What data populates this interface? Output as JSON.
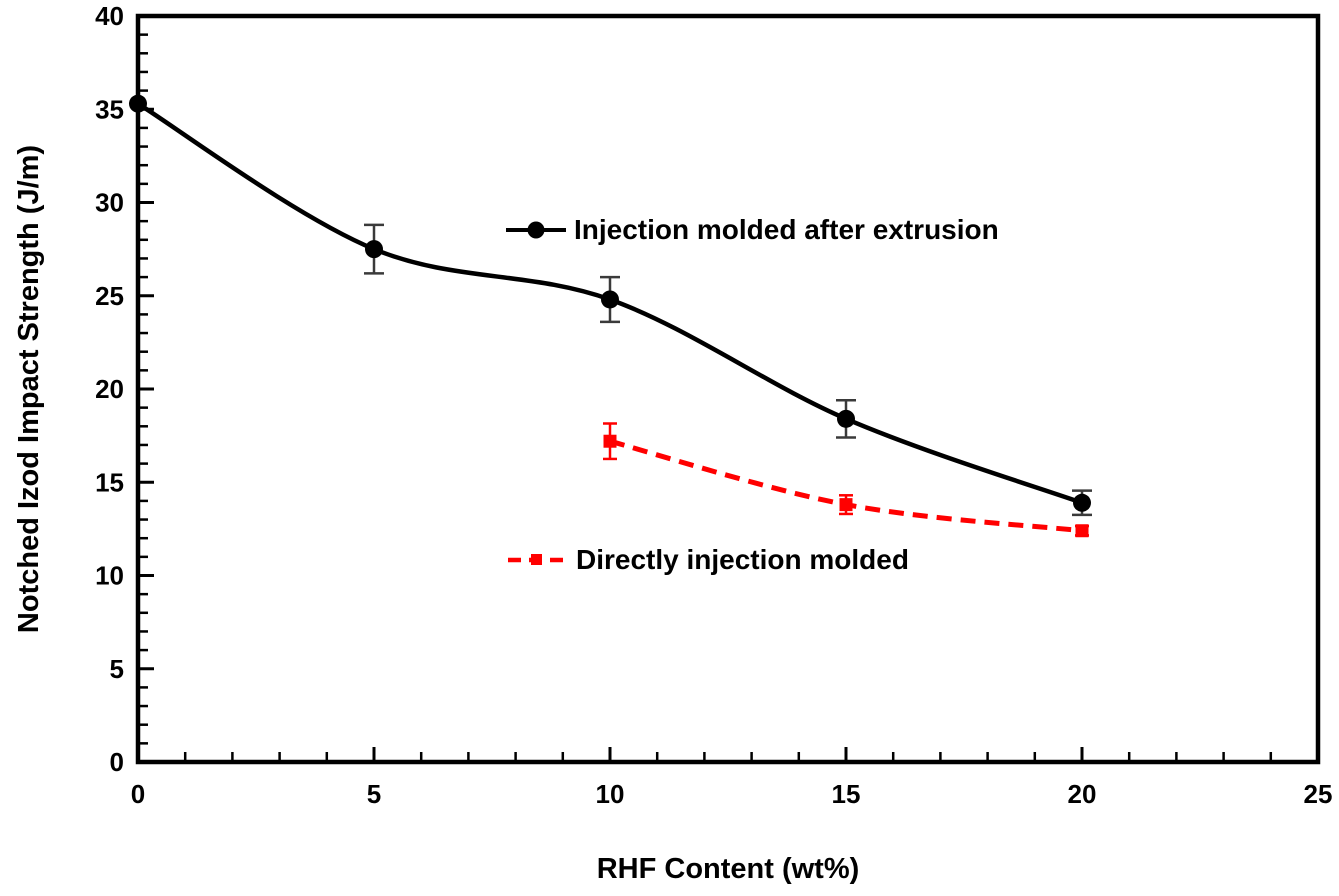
{
  "chart_data": {
    "type": "line",
    "title": "",
    "xlabel": "RHF Content (wt%)",
    "ylabel": "Notched Izod Impact Strength (J/m)",
    "xlim": [
      0,
      25
    ],
    "ylim": [
      0,
      40
    ],
    "x_major_ticks": [
      0,
      5,
      10,
      15,
      20,
      25
    ],
    "y_major_ticks": [
      0,
      5,
      10,
      15,
      20,
      25,
      30,
      35,
      40
    ],
    "minor_tick_step_x": 1,
    "minor_tick_step_y": 1,
    "grid": false,
    "frame": true,
    "legend_position": "inside-plot",
    "colors": {
      "series1": "#000000",
      "series2": "#ff0000",
      "error_bar_dark": "#3a3a3a"
    },
    "series": [
      {
        "name": "Injection molded after extrusion",
        "color": "#000000",
        "line_style": "solid",
        "marker": "circle",
        "x": [
          0,
          5,
          10,
          15,
          20
        ],
        "y": [
          35.3,
          27.5,
          24.8,
          18.4,
          13.9
        ],
        "y_err": [
          0,
          1.3,
          1.2,
          1.0,
          0.65
        ]
      },
      {
        "name": "Directly injection molded",
        "color": "#ff0000",
        "line_style": "dashed",
        "marker": "square",
        "x": [
          10,
          15,
          20
        ],
        "y": [
          17.2,
          13.8,
          12.4
        ],
        "y_err": [
          0.95,
          0.5,
          0.25
        ]
      }
    ]
  }
}
